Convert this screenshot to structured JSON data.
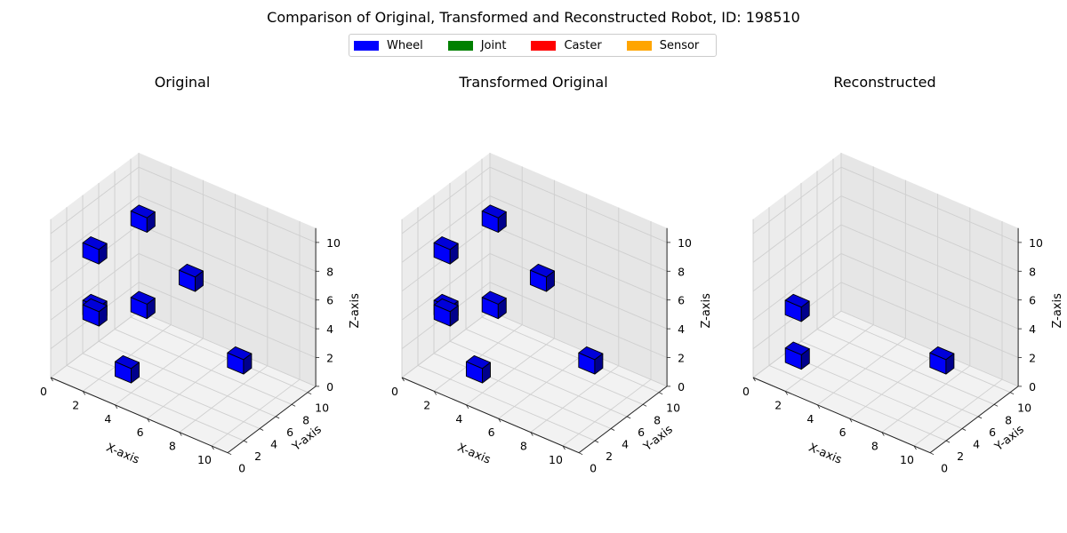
{
  "figure": {
    "title": "Comparison of Original, Transformed and Reconstructed Robot, ID: 198510"
  },
  "legend": [
    {
      "label": "Wheel",
      "color": "#0000ff"
    },
    {
      "label": "Joint",
      "color": "#008000"
    },
    {
      "label": "Caster",
      "color": "#ff0000"
    },
    {
      "label": "Sensor",
      "color": "#ffa500"
    }
  ],
  "chart_data": [
    {
      "type": "scatter3d",
      "title": "Original",
      "xlabel": "X-axis",
      "ylabel": "Y-axis",
      "zlabel": "Z-axis",
      "xlim": [
        0,
        11
      ],
      "ylim": [
        0,
        11
      ],
      "zlim": [
        0,
        11
      ],
      "xticks": [
        0,
        2,
        4,
        6,
        8,
        10
      ],
      "yticks": [
        0,
        2,
        4,
        6,
        8,
        10
      ],
      "zticks": [
        0,
        2,
        4,
        6,
        8,
        10
      ],
      "series": [
        {
          "name": "Wheel",
          "color": "#0000ff",
          "points": [
            {
              "x": 4,
              "y": 0,
              "z": 2
            },
            {
              "x": 2,
              "y": 0,
              "z": 5
            },
            {
              "x": 1,
              "y": 2,
              "z": 4
            },
            {
              "x": 1,
              "y": 2,
              "z": 8
            },
            {
              "x": 2,
              "y": 6,
              "z": 9
            },
            {
              "x": 2,
              "y": 6,
              "z": 3
            },
            {
              "x": 4,
              "y": 8,
              "z": 5
            },
            {
              "x": 8,
              "y": 6,
              "z": 2
            }
          ]
        }
      ]
    },
    {
      "type": "scatter3d",
      "title": "Transformed Original",
      "xlabel": "X-axis",
      "ylabel": "Y-axis",
      "zlabel": "Z-axis",
      "xlim": [
        0,
        11
      ],
      "ylim": [
        0,
        11
      ],
      "zlim": [
        0,
        11
      ],
      "xticks": [
        0,
        2,
        4,
        6,
        8,
        10
      ],
      "yticks": [
        0,
        2,
        4,
        6,
        8,
        10
      ],
      "zticks": [
        0,
        2,
        4,
        6,
        8,
        10
      ],
      "series": [
        {
          "name": "Wheel",
          "color": "#0000ff",
          "points": [
            {
              "x": 4,
              "y": 0,
              "z": 2
            },
            {
              "x": 2,
              "y": 0,
              "z": 5
            },
            {
              "x": 1,
              "y": 2,
              "z": 4
            },
            {
              "x": 1,
              "y": 2,
              "z": 8
            },
            {
              "x": 2,
              "y": 6,
              "z": 9
            },
            {
              "x": 2,
              "y": 6,
              "z": 3
            },
            {
              "x": 4,
              "y": 8,
              "z": 5
            },
            {
              "x": 8,
              "y": 6,
              "z": 2
            }
          ]
        }
      ]
    },
    {
      "type": "scatter3d",
      "title": "Reconstructed",
      "xlabel": "X-axis",
      "ylabel": "Y-axis",
      "zlabel": "Z-axis",
      "xlim": [
        0,
        11
      ],
      "ylim": [
        0,
        11
      ],
      "zlim": [
        0,
        11
      ],
      "xticks": [
        0,
        2,
        4,
        6,
        8,
        10
      ],
      "yticks": [
        0,
        2,
        4,
        6,
        8,
        10
      ],
      "zticks": [
        0,
        2,
        4,
        6,
        8,
        10
      ],
      "series": [
        {
          "name": "Wheel",
          "color": "#0000ff",
          "points": [
            {
              "x": 2,
              "y": 0,
              "z": 2
            },
            {
              "x": 1,
              "y": 2,
              "z": 4
            },
            {
              "x": 8,
              "y": 6,
              "z": 2
            }
          ]
        }
      ]
    }
  ]
}
